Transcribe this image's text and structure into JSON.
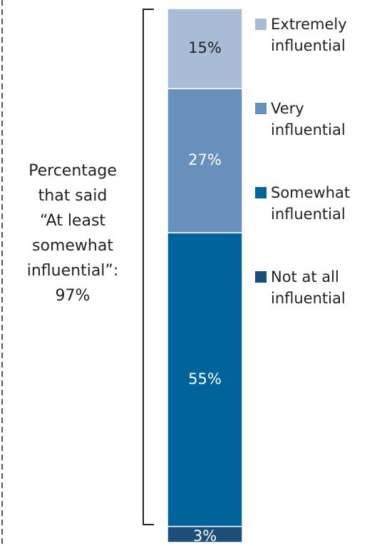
{
  "chart_data": {
    "type": "stacked_bar",
    "annotation": "Percentage\nthat said\n“At least\nsomewhat\ninfluential”:\n97%",
    "ylim": [
      0,
      100
    ],
    "series": [
      {
        "name": "Extremely influential",
        "color": "#a9bcd6",
        "values": [
          15
        ],
        "value_labels": [
          "15%"
        ]
      },
      {
        "name": "Very influential",
        "color": "#6890bd",
        "values": [
          27
        ],
        "value_labels": [
          "27%"
        ]
      },
      {
        "name": "Somewhat influential",
        "color": "#00639c",
        "values": [
          55
        ],
        "value_labels": [
          "55%"
        ]
      },
      {
        "name": "Not at all influential",
        "color": "#1b4f7a",
        "values": [
          3
        ],
        "value_labels": [
          "3%"
        ]
      }
    ]
  }
}
